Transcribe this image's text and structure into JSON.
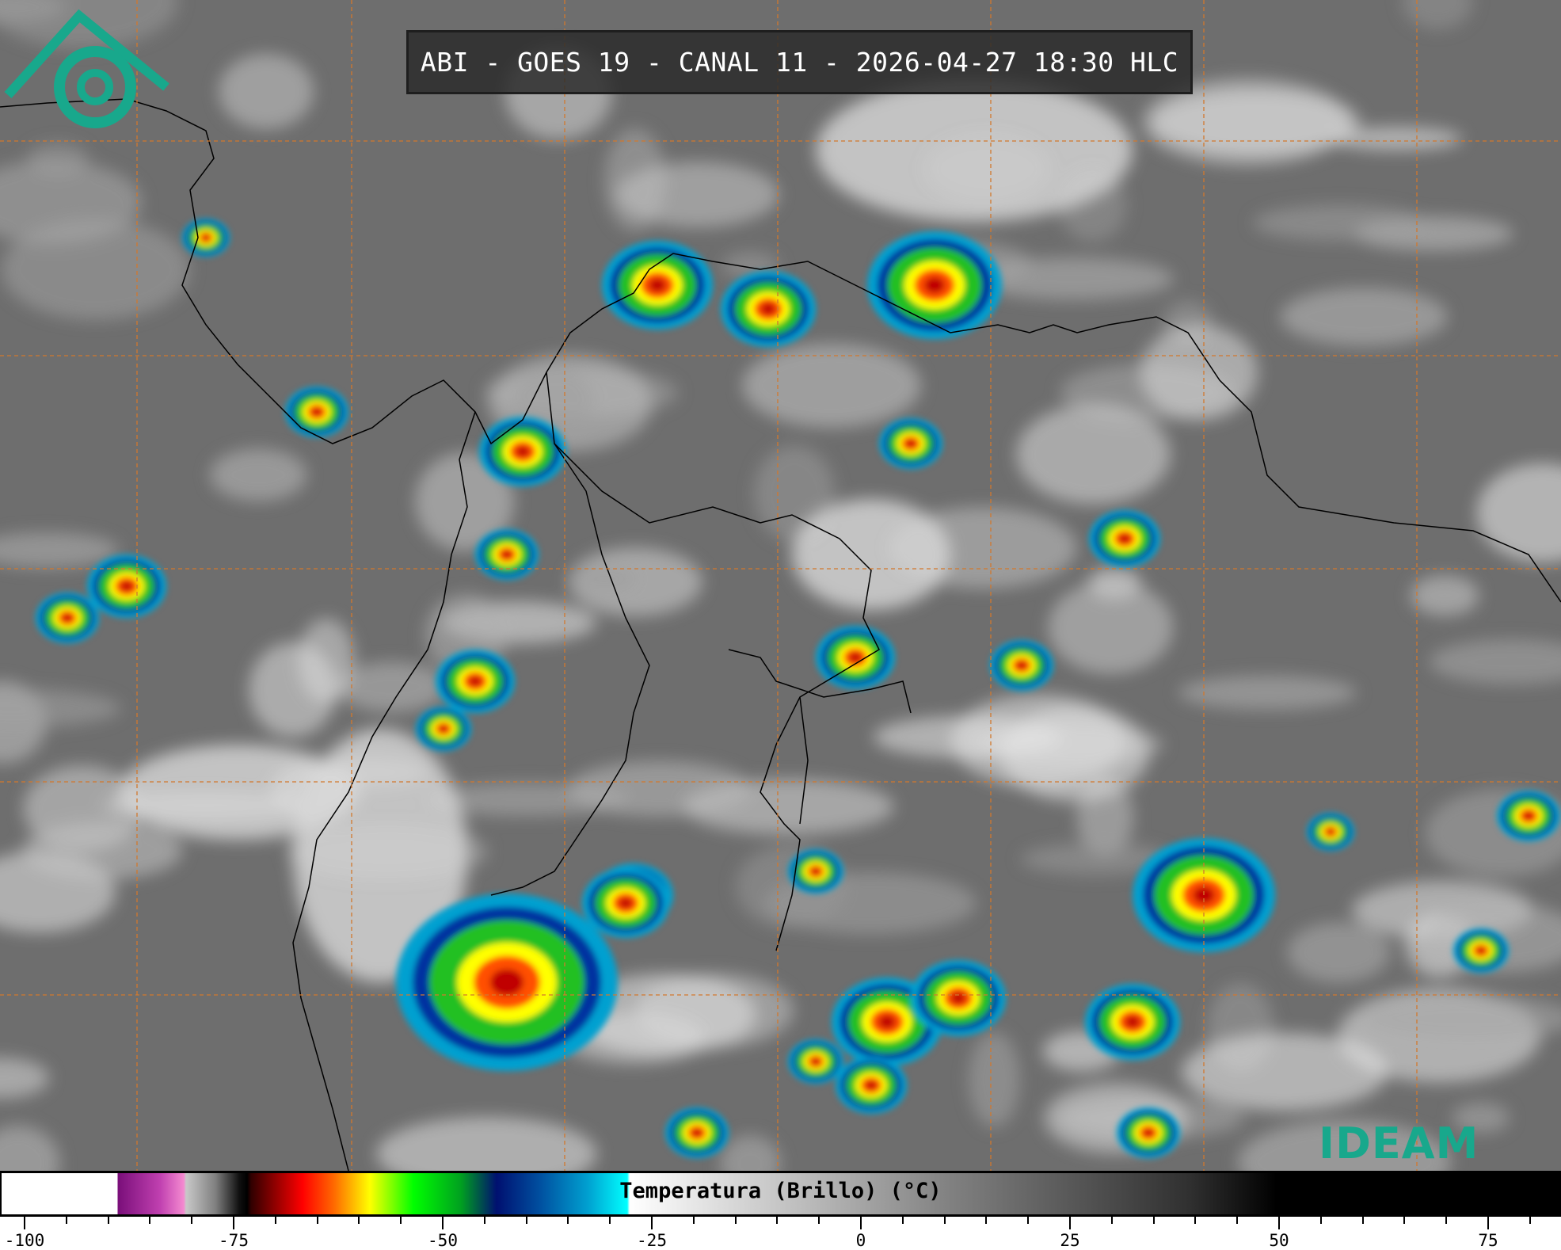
{
  "title": "ABI - GOES 19 - CANAL 11 - 2026-04-27 18:30 HLC",
  "colorbar": {
    "label": "Temperatura (Brillo) (°C)",
    "tick_labels": [
      "-100",
      "-75",
      "-50",
      "-25",
      "0",
      "25",
      "50",
      "75"
    ],
    "range": [
      -102,
      83
    ],
    "minor_step": 5
  },
  "logo": {
    "text": "IDEAM",
    "color": "#18a88c"
  },
  "colors": {
    "grid": "#d2782d",
    "coast": "#000000",
    "background": "#6e6e6e"
  }
}
